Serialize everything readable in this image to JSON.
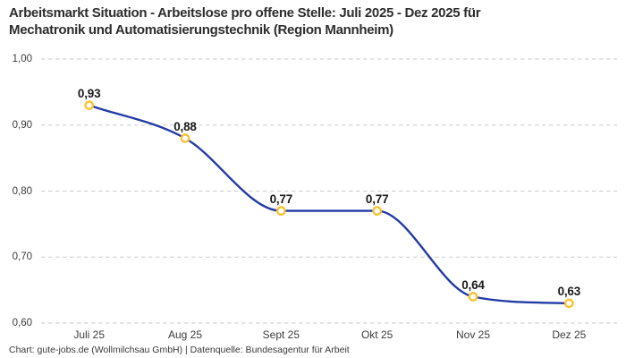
{
  "header": {
    "title_line1": "Arbeitsmarkt Situation - Arbeitslose pro offene Stelle: Juli 2025 - Dez 2025 für",
    "title_line2": "Mechatronik und Automatisierungstechnik (Region Mannheim)"
  },
  "footer": {
    "credit": "Chart: gute-jobs.de (Wollmilchsau GmbH) | Datenquelle: Bundesagentur für Arbeit"
  },
  "chart_data": {
    "type": "line",
    "title": "Arbeitsmarkt Situation - Arbeitslose pro offene Stelle: Juli 2025 - Dez 2025 für Mechatronik und Automatisierungstechnik (Region Mannheim)",
    "categories": [
      "Juli 25",
      "Aug 25",
      "Sept 25",
      "Okt 25",
      "Nov 25",
      "Dez 25"
    ],
    "values": [
      0.93,
      0.88,
      0.77,
      0.77,
      0.64,
      0.63
    ],
    "point_labels": [
      "0,93",
      "0,88",
      "0,77",
      "0,77",
      "0,64",
      "0,63"
    ],
    "xlabel": "",
    "ylabel": "",
    "ylim": [
      0.6,
      1.0
    ],
    "yticks": [
      1.0,
      0.9,
      0.8,
      0.7,
      0.6
    ],
    "ytick_labels": [
      "1,00",
      "0,90",
      "0,80",
      "0,70",
      "0,60"
    ],
    "grid": "horizontal-dashed",
    "legend": "none",
    "line_interpolation": "monotone-cubic",
    "colors": {
      "line": "#233ba5",
      "marker_stroke": "#fbc02d",
      "marker_fill": "#ffffff",
      "gridline": "#cbcbcb",
      "title_text": "#2d2d2d",
      "axis_text": "#3c3c3c",
      "point_label_text": "#1a1a1a",
      "background": "#ffffff"
    }
  }
}
